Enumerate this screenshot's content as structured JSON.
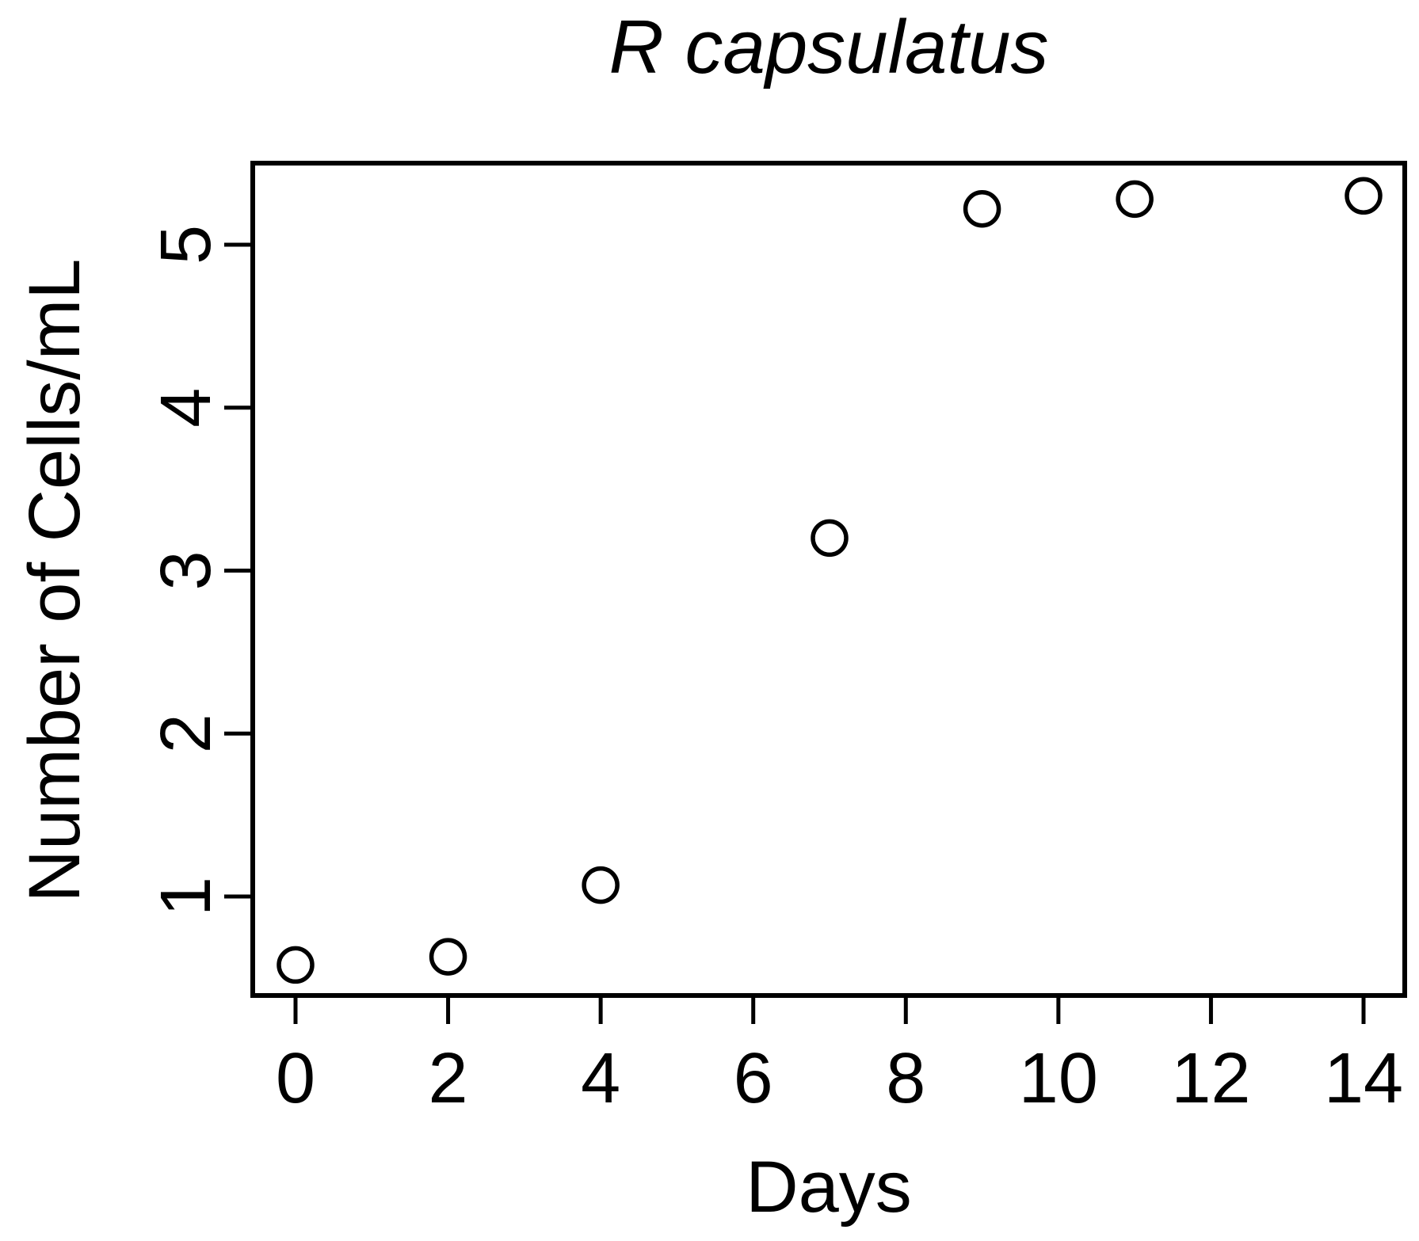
{
  "chart_data": {
    "type": "scatter",
    "title": "R capsulatus",
    "title_style": "italic",
    "xlabel": "Days",
    "ylabel": "Number of Cells/mL",
    "points": [
      {
        "x": 0,
        "y": 0.58
      },
      {
        "x": 2,
        "y": 0.63
      },
      {
        "x": 4,
        "y": 1.07
      },
      {
        "x": 7,
        "y": 3.2
      },
      {
        "x": 9,
        "y": 5.22
      },
      {
        "x": 11,
        "y": 5.28
      },
      {
        "x": 14,
        "y": 5.3
      }
    ],
    "x_ticks": [
      0,
      2,
      4,
      6,
      8,
      10,
      12,
      14
    ],
    "y_ticks": [
      1,
      2,
      3,
      4,
      5
    ],
    "xlim": [
      -0.56,
      14.56
    ],
    "ylim": [
      0.39,
      5.5
    ],
    "marker": "open-circle",
    "grid": false,
    "legend": "none",
    "foreground_color": "#000000",
    "background_color": "#ffffff"
  }
}
